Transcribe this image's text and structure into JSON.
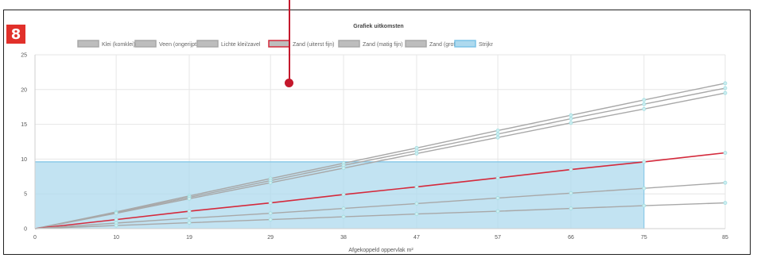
{
  "badge": {
    "label": "8"
  },
  "chart_data": {
    "type": "line",
    "title": "Grafiek uitkomsten",
    "xlabel": "Afgekoppeld oppervlak m²",
    "ylabel": "",
    "x": [
      0,
      10,
      19,
      29,
      38,
      47,
      57,
      66,
      75,
      85
    ],
    "x_tick_labels": [
      "0",
      "10",
      "19",
      "29",
      "38",
      "47",
      "57",
      "66",
      "75",
      "85"
    ],
    "xlim": [
      0,
      85
    ],
    "ylim": [
      0,
      25
    ],
    "y_ticks": [
      0,
      5,
      10,
      15,
      20,
      25
    ],
    "grid": true,
    "legend_position": "top",
    "series": [
      {
        "name": "Klei (komklei)",
        "color": "#a8a8a8",
        "values": [
          0,
          2.4,
          4.7,
          7.2,
          9.4,
          11.6,
          14.1,
          16.3,
          18.5,
          20.9
        ]
      },
      {
        "name": "Veen (ongerijpt)",
        "color": "#a8a8a8",
        "values": [
          0,
          2.3,
          4.5,
          6.9,
          9.1,
          11.2,
          13.6,
          15.8,
          17.9,
          20.2
        ]
      },
      {
        "name": "Lichte klei/zavel",
        "color": "#a8a8a8",
        "values": [
          0,
          2.2,
          4.3,
          6.6,
          8.7,
          10.8,
          13.1,
          15.2,
          17.2,
          19.5
        ]
      },
      {
        "name": "Zand (uiterst fijn)",
        "color": "#d42a3c",
        "values": [
          0,
          1.3,
          2.5,
          3.7,
          4.9,
          6.0,
          7.3,
          8.5,
          9.6,
          10.9
        ]
      },
      {
        "name": "Zand (matig fijn)",
        "color": "#a8a8a8",
        "values": [
          0,
          0.8,
          1.5,
          2.2,
          2.9,
          3.6,
          4.4,
          5.1,
          5.8,
          6.6
        ]
      },
      {
        "name": "Zand (grof)",
        "color": "#a8a8a8",
        "values": [
          0,
          0.45,
          0.85,
          1.3,
          1.7,
          2.1,
          2.5,
          2.9,
          3.3,
          3.7
        ]
      },
      {
        "name": "Strijkr",
        "color": "#aed9ee",
        "type": "area",
        "values": [
          9.6,
          9.6,
          9.6,
          9.6,
          9.6,
          9.6,
          9.6,
          9.6,
          9.6,
          null
        ]
      }
    ]
  }
}
